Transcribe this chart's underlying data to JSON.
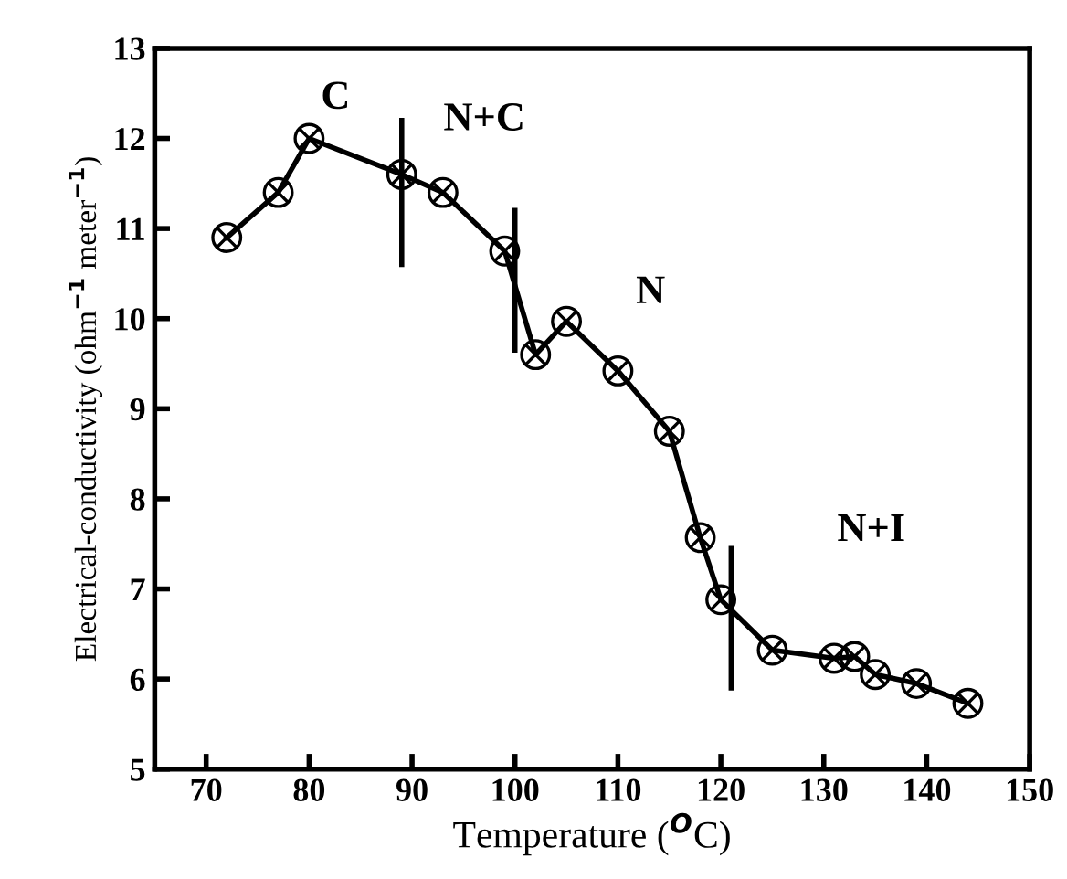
{
  "chart_data": {
    "type": "line",
    "xlabel": "Temperature ($^{O}$C)",
    "ylabel": "Electrical-conductivity (ohm$^{−1}$ meter$^{−1}$)",
    "xlim": [
      65,
      150
    ],
    "ylim": [
      5,
      13
    ],
    "xticks": [
      70,
      80,
      90,
      100,
      110,
      120,
      130,
      140,
      150
    ],
    "yticks": [
      5,
      6,
      7,
      8,
      9,
      10,
      11,
      12,
      13
    ],
    "grid": false,
    "legend": false,
    "marker": "cross",
    "line_style": "solid",
    "series": [
      {
        "color": "#000000",
        "x": [
          72,
          77,
          80,
          89,
          93,
          99,
          102,
          105,
          110,
          115,
          118,
          120,
          125,
          131,
          133,
          135,
          139,
          144
        ],
        "values": [
          10.9,
          11.4,
          12.0,
          11.6,
          11.4,
          10.75,
          9.6,
          9.97,
          9.42,
          8.75,
          7.57,
          6.88,
          6.32,
          6.23,
          6.25,
          6.05,
          5.95,
          5.73
        ]
      },
      {
        "color": "#000000",
        "marker": "none",
        "x": [
          89,
          89
        ],
        "values": [
          10.6,
          12.2
        ]
      },
      {
        "color": "#000000",
        "marker": "none",
        "x": [
          100,
          100
        ],
        "values": [
          9.65,
          11.2
        ]
      },
      {
        "color": "#000000",
        "marker": "none",
        "x": [
          121,
          121
        ],
        "values": [
          5.9,
          7.45
        ]
      }
    ],
    "annotations": [
      "C",
      "N+C",
      "N",
      "N+I"
    ]
  }
}
